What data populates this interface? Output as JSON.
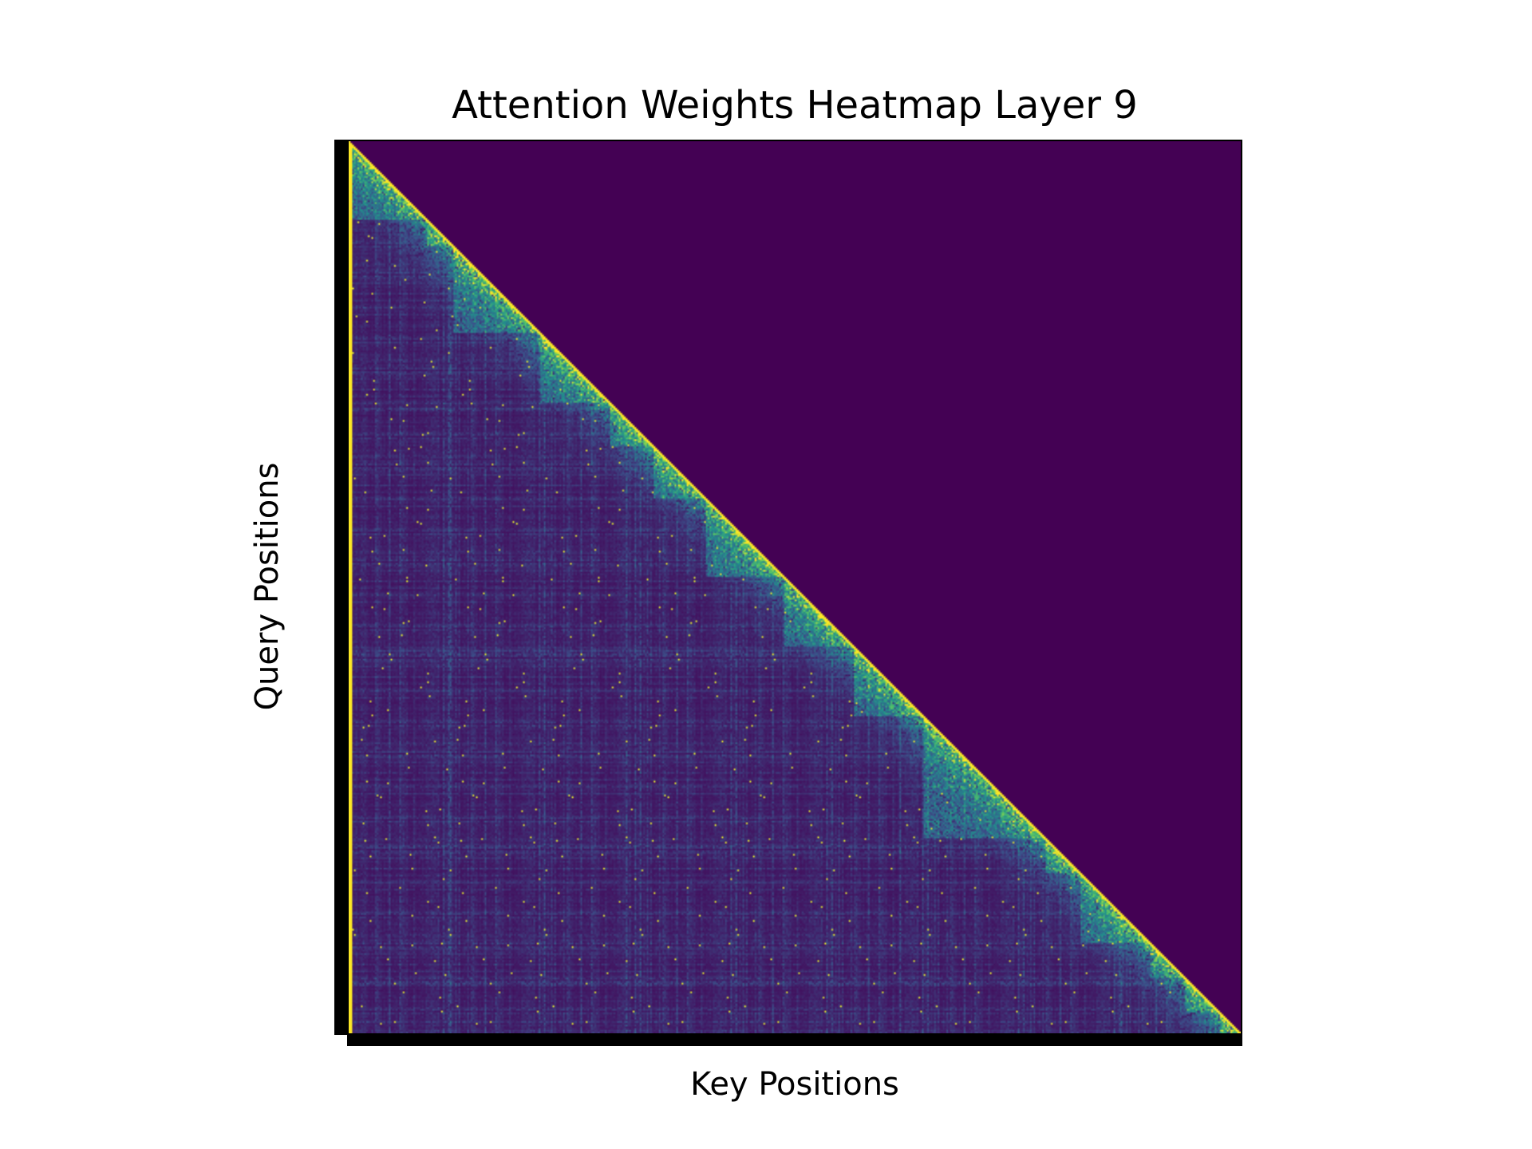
{
  "chart_data": {
    "type": "heatmap",
    "title": "Attention Weights Heatmap Layer 9",
    "xlabel": "Key Positions",
    "ylabel": "Query Positions",
    "colormap": "viridis",
    "mask": "causal (upper triangle above diagonal = 0)",
    "matrix_shape": [
      512,
      512
    ],
    "value_range": [
      0,
      1
    ],
    "diagonal_value": 1.0,
    "first_key_column_value": 1.0,
    "background_value": 0.0,
    "grid": false,
    "legend": "none",
    "colors": {
      "low": "#440154",
      "mid": "#21918c",
      "high": "#fde725"
    }
  }
}
